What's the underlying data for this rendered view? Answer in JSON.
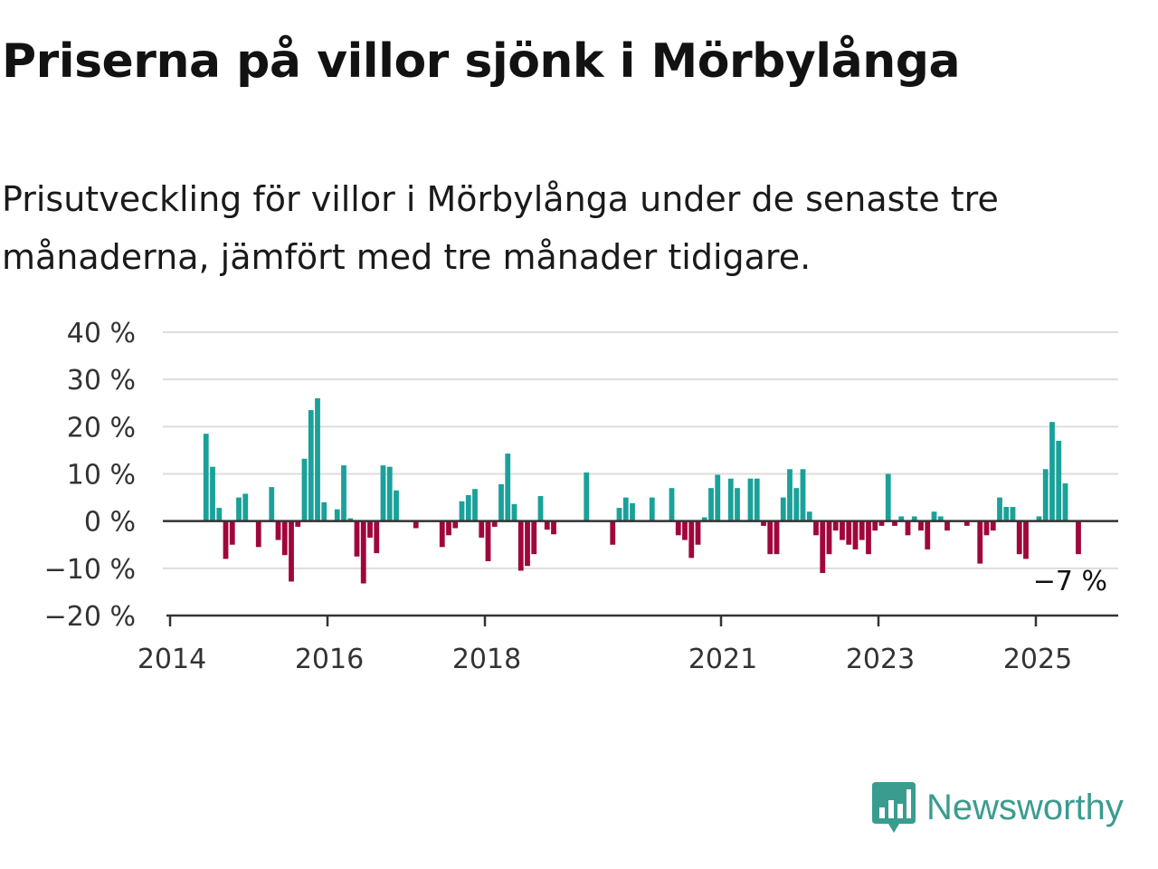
{
  "title": "Priserna på villor sjönk i Mörbylånga",
  "subtitle": "Prisutveckling för villor i Mörbylånga under de senaste tre månaderna, jämfört med tre månader tidigare.",
  "brand": {
    "name": "Newsworthy",
    "icon": "newsworthy-bar-chart-logo-icon",
    "color": "#3a9c8f"
  },
  "colors": {
    "positive": "#1aa199",
    "negative": "#a0063c",
    "grid": "#dddddd",
    "zero_line": "#333333"
  },
  "chart_data": {
    "type": "bar",
    "xlabel": "",
    "ylabel": "",
    "ylim": [
      -20,
      40
    ],
    "y_ticks": [
      40,
      30,
      20,
      10,
      0,
      -10,
      -20
    ],
    "y_tick_labels": [
      "40 %",
      "30 %",
      "20 %",
      "10 %",
      "0 %",
      "−10 %",
      "−20 %"
    ],
    "x_ticks": [
      2014,
      2016,
      2018,
      2021,
      2023,
      2025
    ],
    "x_tick_labels": [
      "2014",
      "2016",
      "2018",
      "2021",
      "2023",
      "2025"
    ],
    "grid": true,
    "annotation": {
      "label": "−7 %",
      "value": -7,
      "date": "2025-07"
    },
    "dates": [
      "2014-01",
      "2014-02",
      "2014-03",
      "2014-04",
      "2014-05",
      "2014-06",
      "2014-07",
      "2014-08",
      "2014-09",
      "2014-10",
      "2014-11",
      "2014-12",
      "2015-01",
      "2015-02",
      "2015-03",
      "2015-04",
      "2015-05",
      "2015-06",
      "2015-07",
      "2015-08",
      "2015-09",
      "2015-10",
      "2015-11",
      "2015-12",
      "2016-01",
      "2016-02",
      "2016-03",
      "2016-04",
      "2016-05",
      "2016-06",
      "2016-07",
      "2016-08",
      "2016-09",
      "2016-10",
      "2016-11",
      "2016-12",
      "2017-01",
      "2017-02",
      "2017-03",
      "2017-04",
      "2017-05",
      "2017-06",
      "2017-07",
      "2017-08",
      "2017-09",
      "2017-10",
      "2017-11",
      "2017-12",
      "2018-01",
      "2018-02",
      "2018-03",
      "2018-04",
      "2018-05",
      "2018-06",
      "2018-07",
      "2018-08",
      "2018-09",
      "2018-10",
      "2018-11",
      "2018-12",
      "2019-01",
      "2019-02",
      "2019-03",
      "2019-04",
      "2019-05",
      "2019-06",
      "2019-07",
      "2019-08",
      "2019-09",
      "2019-10",
      "2019-11",
      "2019-12",
      "2020-01",
      "2020-02",
      "2020-03",
      "2020-04",
      "2020-05",
      "2020-06",
      "2020-07",
      "2020-08",
      "2020-09",
      "2020-10",
      "2020-11",
      "2020-12",
      "2021-01",
      "2021-02",
      "2021-03",
      "2021-04",
      "2021-05",
      "2021-06",
      "2021-07",
      "2021-08",
      "2021-09",
      "2021-10",
      "2021-11",
      "2021-12",
      "2022-01",
      "2022-02",
      "2022-03",
      "2022-04",
      "2022-05",
      "2022-06",
      "2022-07",
      "2022-08",
      "2022-09",
      "2022-10",
      "2022-11",
      "2022-12",
      "2023-01",
      "2023-02",
      "2023-03",
      "2023-04",
      "2023-05",
      "2023-06",
      "2023-07",
      "2023-08",
      "2023-09",
      "2023-10",
      "2023-11",
      "2023-12",
      "2024-01",
      "2024-02",
      "2024-03",
      "2024-04",
      "2024-05",
      "2024-06",
      "2024-07",
      "2024-08",
      "2024-09",
      "2024-10",
      "2024-11",
      "2024-12",
      "2025-01",
      "2025-02",
      "2025-03",
      "2025-04",
      "2025-05",
      "2025-06",
      "2025-07"
    ],
    "values": [
      0,
      0,
      0,
      0,
      0,
      18.5,
      11.5,
      2.8,
      -8,
      -5,
      5,
      5.8,
      0,
      -5.5,
      0,
      7.2,
      -4,
      -7.2,
      -12.8,
      -1.2,
      13.2,
      23.5,
      26,
      4,
      0,
      2.5,
      11.8,
      0.6,
      -7.5,
      -13.2,
      -3.5,
      -6.8,
      11.8,
      11.5,
      6.5,
      0,
      0,
      -1.5,
      0,
      0,
      0,
      -5.5,
      -3,
      -1.5,
      4.2,
      5.5,
      6.8,
      -3.5,
      -8.5,
      -1.2,
      7.8,
      14.3,
      3.6,
      -10.5,
      -9.5,
      -7,
      5.3,
      -1.8,
      -2.8,
      0,
      0,
      0,
      0,
      10.3,
      0,
      0,
      0,
      -5,
      2.8,
      5,
      3.8,
      0,
      0,
      5,
      0,
      0,
      7,
      -3,
      -4,
      -7.8,
      -5,
      0.8,
      7,
      9.8,
      0,
      9,
      7,
      0,
      9,
      9,
      -1,
      -7,
      -7,
      5,
      11,
      7,
      11,
      2,
      -3,
      -11,
      -7,
      -2,
      -4,
      -5,
      -6,
      -4,
      -7,
      -2,
      -1,
      10,
      -1,
      1,
      -3,
      1,
      -2,
      -6,
      2,
      1,
      -2,
      0,
      0,
      -1,
      0,
      -9,
      -3,
      -2,
      5,
      3,
      3,
      -7,
      -8,
      0,
      1,
      11,
      21,
      17,
      8,
      0,
      -7
    ]
  }
}
